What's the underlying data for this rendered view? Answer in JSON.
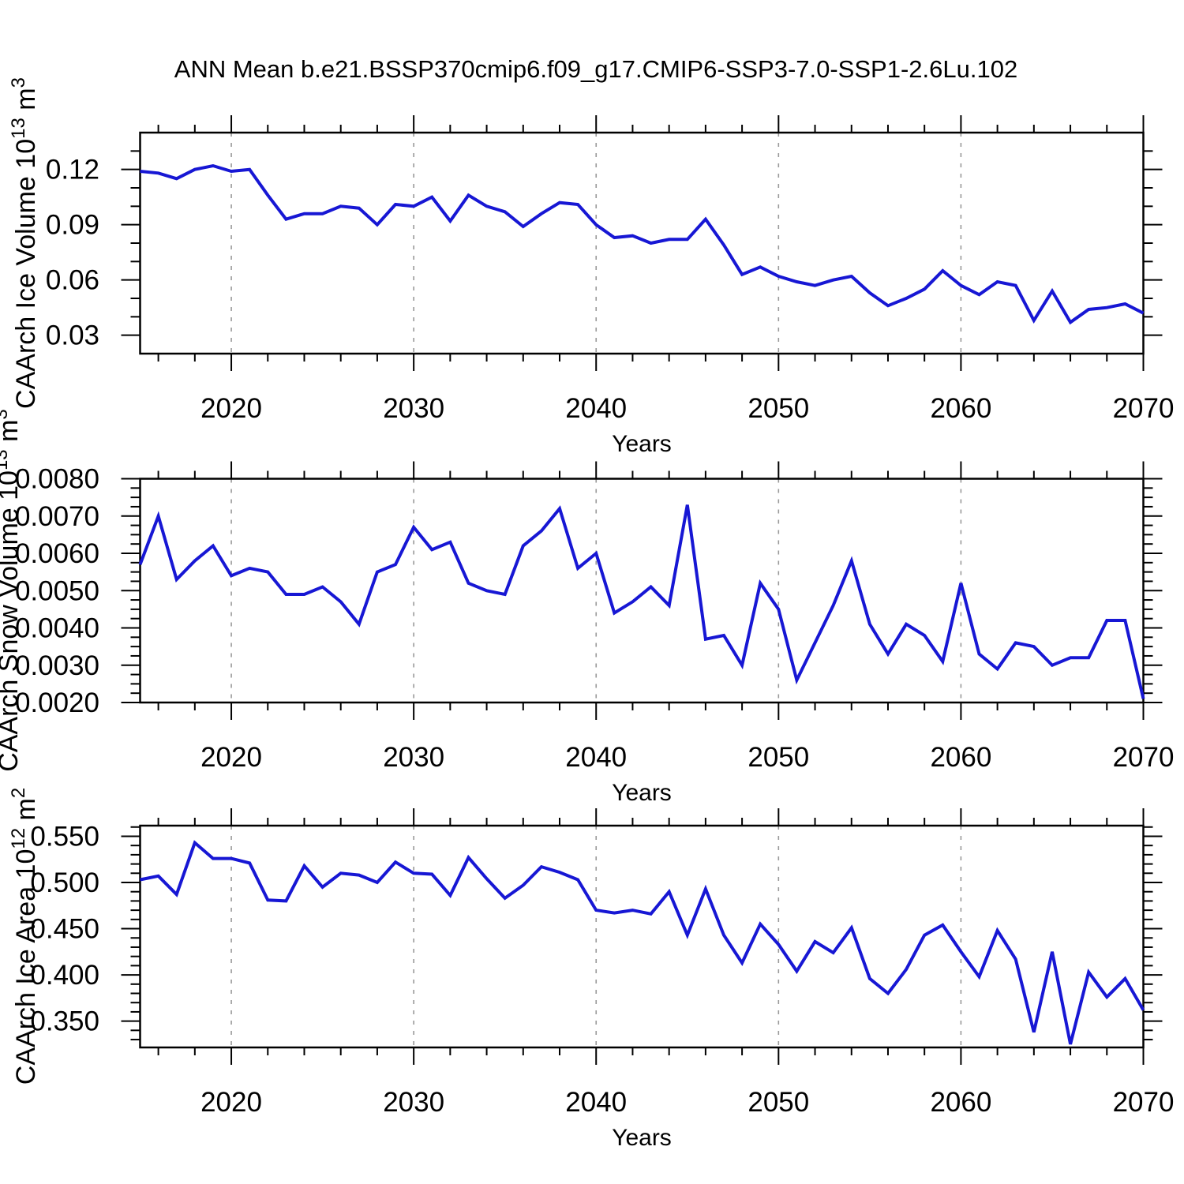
{
  "title": "ANN Mean b.e21.BSSP370cmip6.f09_g17.CMIP6-SSP3-7.0-SSP1-2.6Lu.102",
  "xlabel": "Years",
  "colors": {
    "line": "#1717d4",
    "grid": "#999999",
    "axis": "#000000"
  },
  "x": {
    "start": 2015,
    "end": 2070,
    "minor_step": 2,
    "major_ticks": [
      {
        "v": 2020,
        "label": "2020"
      },
      {
        "v": 2030,
        "label": "2030"
      },
      {
        "v": 2040,
        "label": "2040"
      },
      {
        "v": 2050,
        "label": "2050"
      },
      {
        "v": 2060,
        "label": "2060"
      },
      {
        "v": 2070,
        "label": "2070"
      }
    ],
    "gridline_years": [
      2020,
      2030,
      2040,
      2050,
      2060
    ]
  },
  "years": [
    2015,
    2016,
    2017,
    2018,
    2019,
    2020,
    2021,
    2022,
    2023,
    2024,
    2025,
    2026,
    2027,
    2028,
    2029,
    2030,
    2031,
    2032,
    2033,
    2034,
    2035,
    2036,
    2037,
    2038,
    2039,
    2040,
    2041,
    2042,
    2043,
    2044,
    2045,
    2046,
    2047,
    2048,
    2049,
    2050,
    2051,
    2052,
    2053,
    2054,
    2055,
    2056,
    2057,
    2058,
    2059,
    2060,
    2061,
    2062,
    2063,
    2064,
    2065,
    2066,
    2067,
    2068,
    2069,
    2070
  ],
  "chart_data": [
    {
      "type": "line",
      "title": "ANN Mean b.e21.BSSP370cmip6.f09_g17.CMIP6-SSP3-7.0-SSP1-2.6Lu.102",
      "xlabel": "Years",
      "ylabel": "CAArch Ice Volume 10^13 m^3",
      "ylabel_parts": {
        "base": "CAArch Ice Volume 10",
        "exp": "13",
        "unit": " m",
        "unit_exp": "3"
      },
      "ylim": [
        0.02,
        0.14
      ],
      "yticks": [
        {
          "v": 0.12,
          "label": "0.12"
        },
        {
          "v": 0.09,
          "label": "0.09"
        },
        {
          "v": 0.06,
          "label": "0.06"
        },
        {
          "v": 0.03,
          "label": "0.03"
        }
      ],
      "y_minor_step": 0.01,
      "grid": true,
      "legend": "none",
      "values": [
        0.119,
        0.118,
        0.115,
        0.12,
        0.122,
        0.119,
        0.12,
        0.106,
        0.093,
        0.096,
        0.096,
        0.1,
        0.099,
        0.09,
        0.101,
        0.1,
        0.105,
        0.092,
        0.106,
        0.1,
        0.097,
        0.089,
        0.096,
        0.102,
        0.101,
        0.09,
        0.083,
        0.084,
        0.08,
        0.082,
        0.082,
        0.093,
        0.079,
        0.063,
        0.067,
        0.062,
        0.059,
        0.057,
        0.06,
        0.062,
        0.053,
        0.046,
        0.05,
        0.055,
        0.065,
        0.057,
        0.052,
        0.059,
        0.057,
        0.038,
        0.054,
        0.037,
        0.044,
        0.045,
        0.047,
        0.042
      ]
    },
    {
      "type": "line",
      "title": "",
      "xlabel": "Years",
      "ylabel": "CAArch Snow Volume 10^13 m^3",
      "ylabel_parts": {
        "base": "CAArch Snow Volume 10",
        "exp": "13",
        "unit": " m",
        "unit_exp": "3"
      },
      "ylim": [
        0.002,
        0.008
      ],
      "yticks": [
        {
          "v": 0.008,
          "label": "0.0080"
        },
        {
          "v": 0.007,
          "label": "0.0070"
        },
        {
          "v": 0.006,
          "label": "0.0060"
        },
        {
          "v": 0.005,
          "label": "0.0050"
        },
        {
          "v": 0.004,
          "label": "0.0040"
        },
        {
          "v": 0.003,
          "label": "0.0030"
        },
        {
          "v": 0.002,
          "label": "0.0020"
        }
      ],
      "y_minor_step": 0.00025,
      "grid": true,
      "legend": "none",
      "values": [
        0.0057,
        0.007,
        0.0053,
        0.0058,
        0.0062,
        0.0054,
        0.0056,
        0.0055,
        0.0049,
        0.0049,
        0.0051,
        0.0047,
        0.0041,
        0.0055,
        0.0057,
        0.0067,
        0.0061,
        0.0063,
        0.0052,
        0.005,
        0.0049,
        0.0062,
        0.0066,
        0.0072,
        0.0056,
        0.006,
        0.0044,
        0.0047,
        0.0051,
        0.0046,
        0.0073,
        0.0037,
        0.0038,
        0.003,
        0.0052,
        0.0045,
        0.0026,
        0.0036,
        0.0046,
        0.0058,
        0.0041,
        0.0033,
        0.0041,
        0.0038,
        0.0031,
        0.0052,
        0.0033,
        0.0029,
        0.0036,
        0.0035,
        0.003,
        0.0032,
        0.0032,
        0.0042,
        0.0042,
        0.0021
      ]
    },
    {
      "type": "line",
      "title": "",
      "xlabel": "Years",
      "ylabel": "CAArch Ice Area 10^12 m^2",
      "ylabel_parts": {
        "base": "CAArch Ice Area 10",
        "exp": "12",
        "unit": " m",
        "unit_exp": "2"
      },
      "ylim": [
        0.3215,
        0.5615
      ],
      "yticks": [
        {
          "v": 0.55,
          "label": "0.550"
        },
        {
          "v": 0.5,
          "label": "0.500"
        },
        {
          "v": 0.45,
          "label": "0.450"
        },
        {
          "v": 0.4,
          "label": "0.400"
        },
        {
          "v": 0.35,
          "label": "0.350"
        }
      ],
      "y_minor_step": 0.01,
      "grid": true,
      "legend": "none",
      "values": [
        0.503,
        0.507,
        0.487,
        0.543,
        0.526,
        0.526,
        0.521,
        0.481,
        0.48,
        0.518,
        0.495,
        0.51,
        0.508,
        0.5,
        0.522,
        0.51,
        0.509,
        0.486,
        0.527,
        0.504,
        0.483,
        0.497,
        0.517,
        0.511,
        0.503,
        0.47,
        0.467,
        0.47,
        0.466,
        0.49,
        0.443,
        0.493,
        0.443,
        0.413,
        0.455,
        0.433,
        0.404,
        0.436,
        0.424,
        0.451,
        0.396,
        0.38,
        0.406,
        0.443,
        0.454,
        0.425,
        0.398,
        0.448,
        0.417,
        0.338,
        0.425,
        0.325,
        0.403,
        0.376,
        0.396,
        0.362
      ]
    }
  ]
}
